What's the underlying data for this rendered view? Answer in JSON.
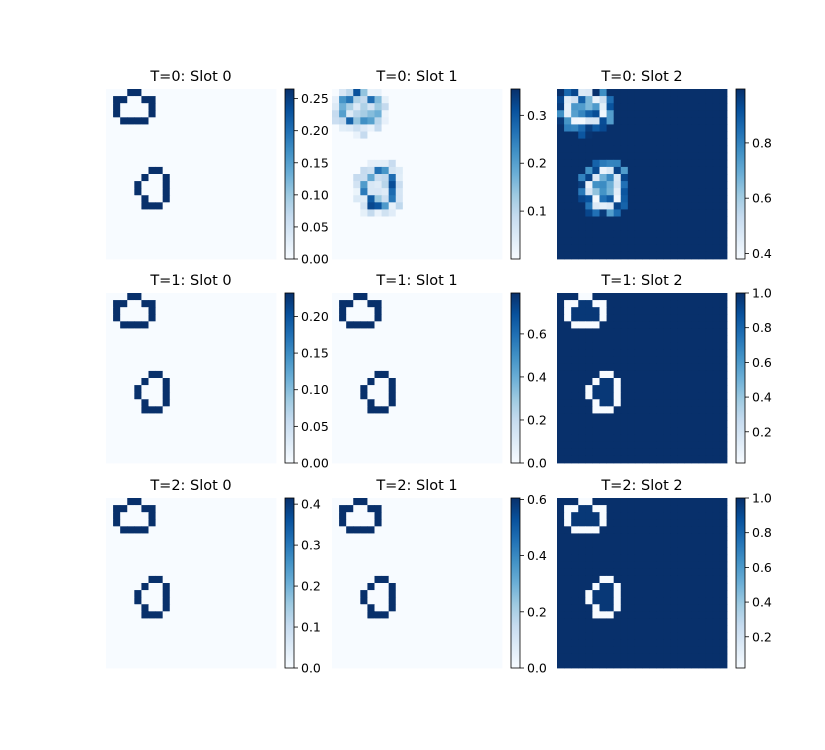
{
  "chart_data": {
    "type": "heatmap",
    "colormap": "Blues",
    "panels": [
      {
        "title": "T=0: Slot 0",
        "time": 0,
        "slot": 0,
        "variant": "mask-low",
        "vmin": 0.0,
        "vmax": 0.265,
        "ticks": [
          "0.00",
          "0.05",
          "0.10",
          "0.15",
          "0.20",
          "0.25"
        ],
        "tick_values": [
          0.0,
          0.05,
          0.1,
          0.15,
          0.2,
          0.25
        ]
      },
      {
        "title": "T=0: Slot 1",
        "time": 0,
        "slot": 1,
        "variant": "diffuse",
        "vmin": 0.0,
        "vmax": 0.355,
        "ticks": [
          "0.1",
          "0.2",
          "0.3"
        ],
        "tick_values": [
          0.1,
          0.2,
          0.3
        ]
      },
      {
        "title": "T=0: Slot 2",
        "time": 0,
        "slot": 2,
        "variant": "background-diffuse",
        "vmin": 0.38,
        "vmax": 0.995,
        "ticks": [
          "0.4",
          "0.6",
          "0.8"
        ],
        "tick_values": [
          0.4,
          0.6,
          0.8
        ]
      },
      {
        "title": "T=1: Slot 0",
        "time": 1,
        "slot": 0,
        "variant": "mask-low",
        "vmin": 0.0,
        "vmax": 0.232,
        "ticks": [
          "0.00",
          "0.05",
          "0.10",
          "0.15",
          "0.20"
        ],
        "tick_values": [
          0.0,
          0.05,
          0.1,
          0.15,
          0.2
        ]
      },
      {
        "title": "T=1: Slot 1",
        "time": 1,
        "slot": 1,
        "variant": "mask",
        "vmin": 0.0,
        "vmax": 0.79,
        "ticks": [
          "0.0",
          "0.2",
          "0.4",
          "0.6"
        ],
        "tick_values": [
          0.0,
          0.2,
          0.4,
          0.6
        ]
      },
      {
        "title": "T=1: Slot 2",
        "time": 1,
        "slot": 2,
        "variant": "background",
        "vmin": 0.02,
        "vmax": 1.0,
        "ticks": [
          "0.2",
          "0.4",
          "0.6",
          "0.8",
          "1.0"
        ],
        "tick_values": [
          0.2,
          0.4,
          0.6,
          0.8,
          1.0
        ]
      },
      {
        "title": "T=2: Slot 0",
        "time": 2,
        "slot": 0,
        "variant": "mask-low",
        "vmin": 0.0,
        "vmax": 0.415,
        "ticks": [
          "0.0",
          "0.1",
          "0.2",
          "0.3",
          "0.4"
        ],
        "tick_values": [
          0.0,
          0.1,
          0.2,
          0.3,
          0.4
        ]
      },
      {
        "title": "T=2: Slot 1",
        "time": 2,
        "slot": 1,
        "variant": "mask",
        "vmin": 0.0,
        "vmax": 0.605,
        "ticks": [
          "0.0",
          "0.2",
          "0.4",
          "0.6"
        ],
        "tick_values": [
          0.0,
          0.2,
          0.4,
          0.6
        ]
      },
      {
        "title": "T=2: Slot 2",
        "time": 2,
        "slot": 2,
        "variant": "background",
        "vmin": 0.02,
        "vmax": 1.0,
        "ticks": [
          "0.2",
          "0.4",
          "0.6",
          "0.8",
          "1.0"
        ],
        "tick_values": [
          0.2,
          0.4,
          0.6,
          0.8,
          1.0
        ]
      }
    ]
  }
}
